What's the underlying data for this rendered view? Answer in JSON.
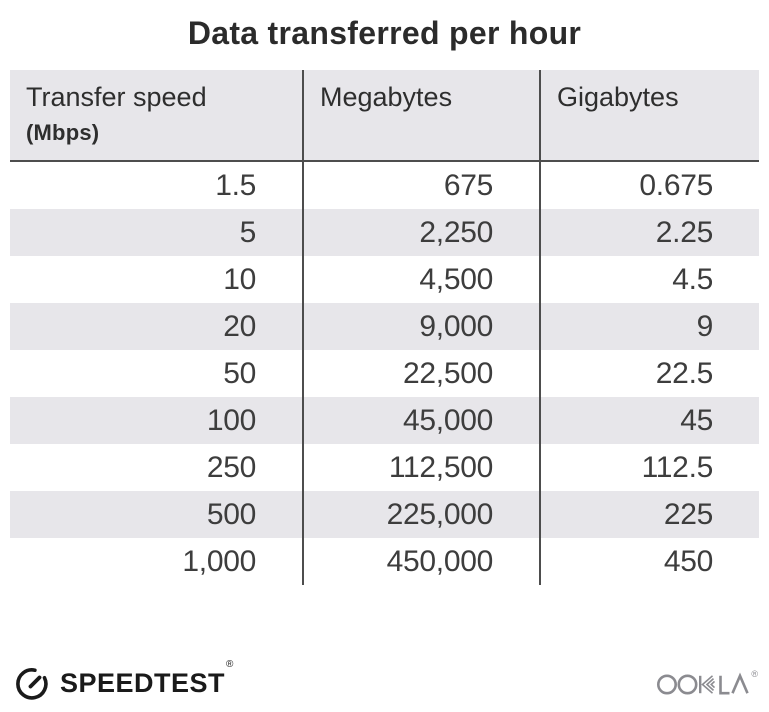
{
  "title": "Data transferred per hour",
  "table": {
    "columns": [
      {
        "label": "Transfer speed",
        "sublabel": "(Mbps)"
      },
      {
        "label": "Megabytes",
        "sublabel": ""
      },
      {
        "label": "Gigabytes",
        "sublabel": ""
      }
    ],
    "rows": [
      [
        "1.5",
        "675",
        "0.675"
      ],
      [
        "5",
        "2,250",
        "2.25"
      ],
      [
        "10",
        "4,500",
        "4.5"
      ],
      [
        "20",
        "9,000",
        "9"
      ],
      [
        "50",
        "22,500",
        "22.5"
      ],
      [
        "100",
        "45,000",
        "45"
      ],
      [
        "250",
        "112,500",
        "112.5"
      ],
      [
        "500",
        "225,000",
        "225"
      ],
      [
        "1,000",
        "450,000",
        "450"
      ]
    ]
  },
  "footer": {
    "brand": "SPEEDTEST",
    "brand_trademark": "®",
    "brand_icon": "speedtest-gauge-icon",
    "partner": "OOKLA",
    "partner_trademark": "®",
    "partner_icon": "ookla-wordmark"
  },
  "colors": {
    "background": "#ffffff",
    "header_bg": "#e7e6ea",
    "stripe_bg": "#e7e6ea",
    "divider": "#4d4d4d",
    "title_text": "#2b2b2b",
    "header_text": "#2e2e2e",
    "body_text": "#3d3d3d",
    "brand_black": "#1a1a1a",
    "ookla_gray": "#8b8b90"
  },
  "chart_data": {
    "type": "table",
    "title": "Data transferred per hour",
    "columns": [
      "Transfer speed (Mbps)",
      "Megabytes",
      "Gigabytes"
    ],
    "rows": [
      [
        1.5,
        675,
        0.675
      ],
      [
        5,
        2250,
        2.25
      ],
      [
        10,
        4500,
        4.5
      ],
      [
        20,
        9000,
        9
      ],
      [
        50,
        22500,
        22.5
      ],
      [
        100,
        45000,
        45
      ],
      [
        250,
        112500,
        112.5
      ],
      [
        500,
        225000,
        225
      ],
      [
        1000,
        450000,
        450
      ]
    ]
  }
}
